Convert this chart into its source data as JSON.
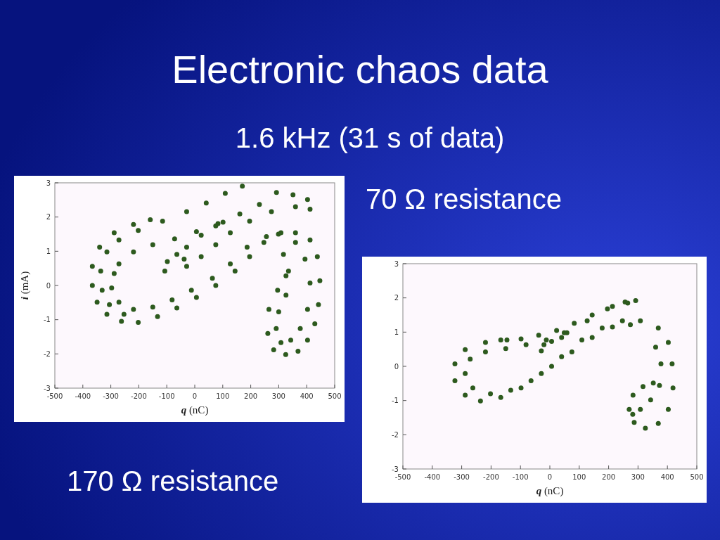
{
  "chart_data": [
    {
      "type": "scatter",
      "title": "Electronic chaos data",
      "subtitle": "1.6 kHz (31 s of data)",
      "annotations": [
        "170 Ω resistance"
      ],
      "xlabel": "q (nC)",
      "ylabel": "i (mA)",
      "xlim": [
        -500,
        500
      ],
      "ylim": [
        -3,
        3
      ],
      "xticks": [
        -500,
        -400,
        -300,
        -200,
        -100,
        0,
        100,
        200,
        300,
        400,
        500
      ],
      "yticks": [
        -3,
        -2,
        -1,
        0,
        1,
        2,
        3
      ],
      "marker": "circle",
      "series": [
        {
          "color": "#2d5a1e",
          "x": [
            -159,
            -219,
            -288,
            -340,
            -366,
            -366,
            -349,
            -314,
            -262,
            -202,
            -133,
            -64,
            6,
            75,
            144,
            196,
            247,
            299,
            360,
            412,
            438,
            447,
            442,
            429,
            403,
            369,
            325,
            282,
            261,
            265,
            296,
            326,
            317,
            335,
            -288,
            -271,
            -219,
            -150,
            -72,
            6,
            83,
            161,
            231,
            292,
            351,
            403,
            412,
            360,
            274,
            196,
            127,
            75,
            23,
            -29,
            170,
            109,
            41,
            -29,
            -115,
            -202,
            -271,
            -314,
            -336,
            -331,
            -305,
            -253,
            -297,
            -271,
            -219,
            -150,
            -81,
            -12,
            63,
            127,
            187,
            256,
            308,
            360,
            394,
            412,
            403,
            377,
            343,
            308,
            291,
            300,
            326,
            -107,
            -98,
            -64,
            -29,
            23,
            75,
            101,
            -38
          ],
          "values": [
            1.92,
            1.78,
            1.54,
            1.12,
            0.56,
            0,
            -0.49,
            -0.84,
            -1.05,
            -1.08,
            -0.91,
            -0.66,
            -0.35,
            0,
            0.42,
            0.84,
            1.26,
            1.5,
            1.54,
            1.33,
            0.84,
            0.14,
            -0.56,
            -1.12,
            -1.6,
            -1.92,
            -2.02,
            -1.88,
            -1.4,
            -0.7,
            -0.14,
            0.28,
            0.91,
            0.42,
            0.35,
            0.63,
            0.98,
            1.19,
            1.36,
            1.57,
            1.81,
            2.09,
            2.37,
            2.72,
            2.65,
            2.51,
            2.23,
            2.3,
            2.16,
            1.88,
            1.54,
            1.19,
            0.84,
            0.56,
            2.9,
            2.69,
            2.41,
            2.16,
            1.88,
            1.61,
            1.33,
            0.98,
            0.42,
            -0.14,
            -0.56,
            -0.84,
            -0.07,
            -0.49,
            -0.7,
            -0.63,
            -0.42,
            -0.14,
            0.21,
            0.63,
            1.12,
            1.43,
            1.54,
            1.26,
            0.77,
            0.07,
            -0.7,
            -1.26,
            -1.6,
            -1.67,
            -1.26,
            -0.77,
            -0.28,
            0.42,
            0.7,
            0.91,
            1.12,
            1.47,
            1.74,
            1.85,
            0.77
          ]
        }
      ]
    },
    {
      "type": "scatter",
      "annotations": [
        "70 Ω resistance"
      ],
      "xlabel": "q (nC)",
      "xlim": [
        -500,
        500
      ],
      "ylim": [
        -3,
        3
      ],
      "xticks": [
        -500,
        -400,
        -300,
        -200,
        -100,
        0,
        100,
        200,
        300,
        400,
        500
      ],
      "yticks": [
        -3,
        -2,
        -1,
        0,
        1,
        2,
        3
      ],
      "marker": "circle",
      "series": [
        {
          "color": "#2d5a1e",
          "x": [
            -146,
            -219,
            -288,
            -323,
            -323,
            -288,
            -236,
            -167,
            -98,
            -29,
            40,
            109,
            178,
            247,
            308,
            369,
            403,
            416,
            419,
            403,
            369,
            325,
            287,
            270,
            283,
            317,
            352,
            360,
            378,
            373,
            343,
            308,
            282,
            -288,
            -262,
            -202,
            -133,
            -64,
            6,
            75,
            144,
            213,
            274,
            -271,
            -219,
            -150,
            -81,
            -12,
            58,
            127,
            196,
            256,
            292,
            265,
            213,
            144,
            83,
            23,
            -38,
            -98,
            -167,
            -29,
            -20,
            6,
            49,
            40
          ],
          "values": [
            0.77,
            0.7,
            0.49,
            0.07,
            -0.42,
            -0.84,
            -1.01,
            -0.91,
            -0.63,
            -0.21,
            0.28,
            0.77,
            1.12,
            1.33,
            1.33,
            1.12,
            0.7,
            0.07,
            -0.63,
            -1.26,
            -1.67,
            -1.81,
            -1.64,
            -1.26,
            -0.84,
            -0.59,
            -0.49,
            0.56,
            0.07,
            -0.56,
            -0.98,
            -1.26,
            -1.4,
            -0.21,
            -0.63,
            -0.8,
            -0.7,
            -0.42,
            0,
            0.42,
            0.84,
            1.15,
            1.22,
            0.21,
            0.42,
            0.52,
            0.63,
            0.77,
            0.98,
            1.33,
            1.68,
            1.88,
            1.92,
            1.85,
            1.75,
            1.5,
            1.26,
            1.05,
            0.91,
            0.8,
            0.77,
            0.45,
            0.63,
            0.73,
            0.98,
            0.84
          ]
        }
      ]
    }
  ]
}
